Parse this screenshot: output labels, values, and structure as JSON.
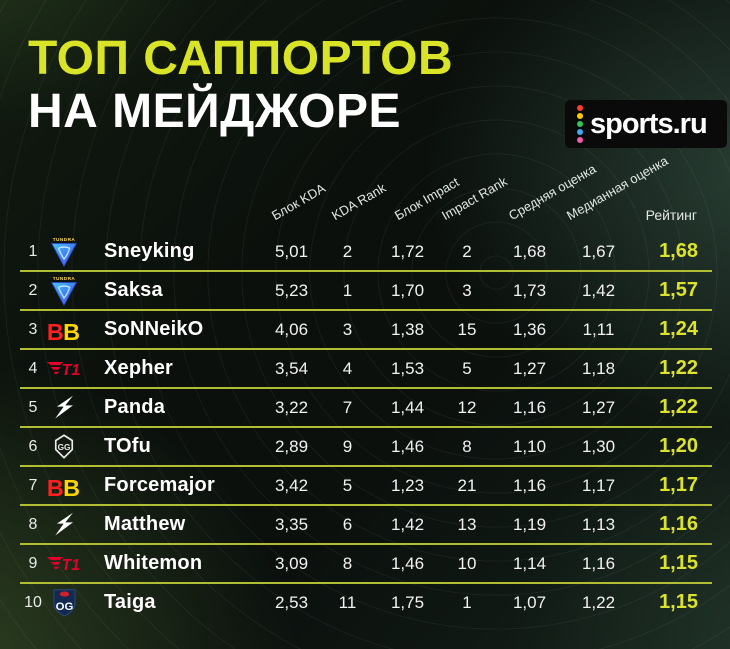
{
  "header": {
    "title_line1": "ТОП САППОРТОВ",
    "title_line2": "НА МЕЙДЖОРЕ",
    "brand_text": "sports.ru",
    "brand_dot_colors": [
      "#ff3b30",
      "#ffcc00",
      "#34c759",
      "#3fa9f5",
      "#ef5da8"
    ]
  },
  "colors": {
    "accent_yellow": "#d9e427",
    "divider_olive": "#b1bd33",
    "background_green": "#15211a"
  },
  "icons": {
    "brand_dots": "sports-ru-dots-icon",
    "team_logos": [
      "tundra",
      "betboom",
      "t1",
      "azureray",
      "gaimin",
      "og"
    ]
  },
  "chart_data": {
    "type": "table",
    "title": "ТОП САППОРТОВ НА МЕЙДЖОРЕ",
    "columns": [
      "Блок KDA",
      "KDA Rank",
      "Блок Impact",
      "Impact Rank",
      "Средняя оценка",
      "Медианная оценка",
      "Рейтинг"
    ],
    "rows": [
      {
        "rank": "1",
        "team": "tundra",
        "player": "Sneyking",
        "kda": "5,01",
        "kda_rank": "2",
        "impact": "1,72",
        "impact_rank": "2",
        "avg": "1,68",
        "median": "1,67",
        "rating": "1,68"
      },
      {
        "rank": "2",
        "team": "tundra",
        "player": "Saksa",
        "kda": "5,23",
        "kda_rank": "1",
        "impact": "1,70",
        "impact_rank": "3",
        "avg": "1,73",
        "median": "1,42",
        "rating": "1,57"
      },
      {
        "rank": "3",
        "team": "betboom",
        "player": "SoNNeikO",
        "kda": "4,06",
        "kda_rank": "3",
        "impact": "1,38",
        "impact_rank": "15",
        "avg": "1,36",
        "median": "1,11",
        "rating": "1,24"
      },
      {
        "rank": "4",
        "team": "t1",
        "player": "Xepher",
        "kda": "3,54",
        "kda_rank": "4",
        "impact": "1,53",
        "impact_rank": "5",
        "avg": "1,27",
        "median": "1,18",
        "rating": "1,22"
      },
      {
        "rank": "5",
        "team": "azureray",
        "player": "Panda",
        "kda": "3,22",
        "kda_rank": "7",
        "impact": "1,44",
        "impact_rank": "12",
        "avg": "1,16",
        "median": "1,27",
        "rating": "1,22"
      },
      {
        "rank": "6",
        "team": "gaimin",
        "player": "TOfu",
        "kda": "2,89",
        "kda_rank": "9",
        "impact": "1,46",
        "impact_rank": "8",
        "avg": "1,10",
        "median": "1,30",
        "rating": "1,20"
      },
      {
        "rank": "7",
        "team": "betboom",
        "player": "Forcemajor",
        "kda": "3,42",
        "kda_rank": "5",
        "impact": "1,23",
        "impact_rank": "21",
        "avg": "1,16",
        "median": "1,17",
        "rating": "1,17"
      },
      {
        "rank": "8",
        "team": "azureray",
        "player": "Matthew",
        "kda": "3,35",
        "kda_rank": "6",
        "impact": "1,42",
        "impact_rank": "13",
        "avg": "1,19",
        "median": "1,13",
        "rating": "1,16"
      },
      {
        "rank": "9",
        "team": "t1",
        "player": "Whitemon",
        "kda": "3,09",
        "kda_rank": "8",
        "impact": "1,46",
        "impact_rank": "10",
        "avg": "1,14",
        "median": "1,16",
        "rating": "1,15"
      },
      {
        "rank": "10",
        "team": "og",
        "player": "Taiga",
        "kda": "2,53",
        "kda_rank": "11",
        "impact": "1,75",
        "impact_rank": "1",
        "avg": "1,07",
        "median": "1,22",
        "rating": "1,15"
      }
    ]
  }
}
